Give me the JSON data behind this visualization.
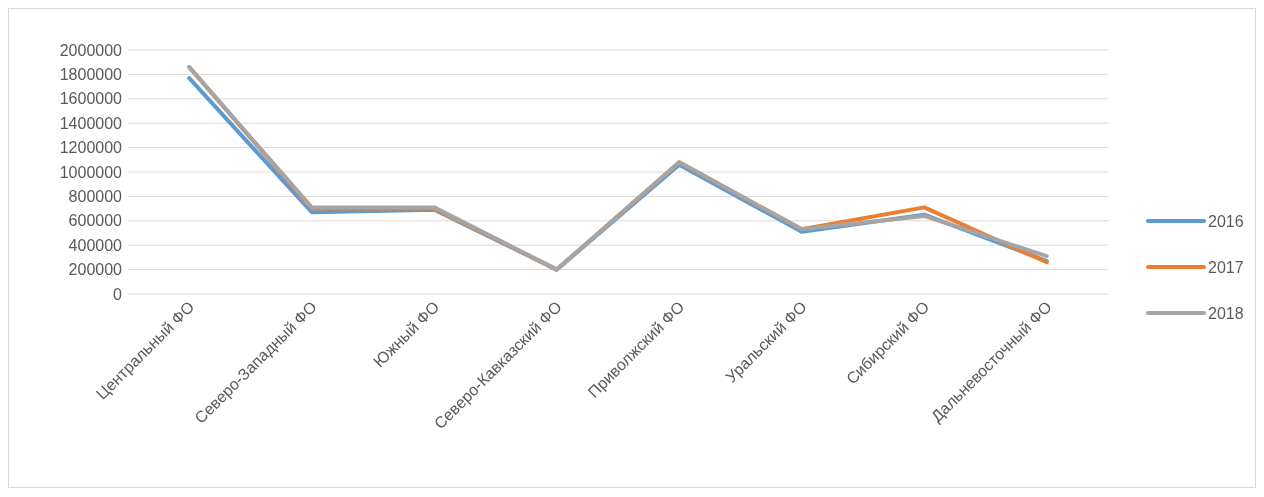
{
  "chart_data": {
    "type": "line",
    "categories": [
      "Центральный ФО",
      "Северо-Западный ФО",
      "Южный ФО",
      "Северо-Кавказский ФО",
      "Приволжский ФО",
      "Уральский ФО",
      "Сибирский ФО",
      "Дальневосточный ФО"
    ],
    "series": [
      {
        "name": "2016",
        "color": "#5b9bd5",
        "values": [
          1770000,
          670000,
          690000,
          200000,
          1060000,
          510000,
          650000,
          270000
        ]
      },
      {
        "name": "2017",
        "color": "#ed7d31",
        "values": [
          1860000,
          700000,
          700000,
          200000,
          1080000,
          530000,
          710000,
          260000
        ]
      },
      {
        "name": "2018",
        "color": "#a5a5a5",
        "values": [
          1860000,
          710000,
          710000,
          200000,
          1080000,
          530000,
          640000,
          310000
        ]
      }
    ],
    "ylim": [
      0,
      2000000
    ],
    "yticks": [
      0,
      200000,
      400000,
      600000,
      800000,
      1000000,
      1200000,
      1400000,
      1600000,
      1800000,
      2000000
    ],
    "grid": "y",
    "legend": "right",
    "marker": "none",
    "line_style": "solid"
  }
}
